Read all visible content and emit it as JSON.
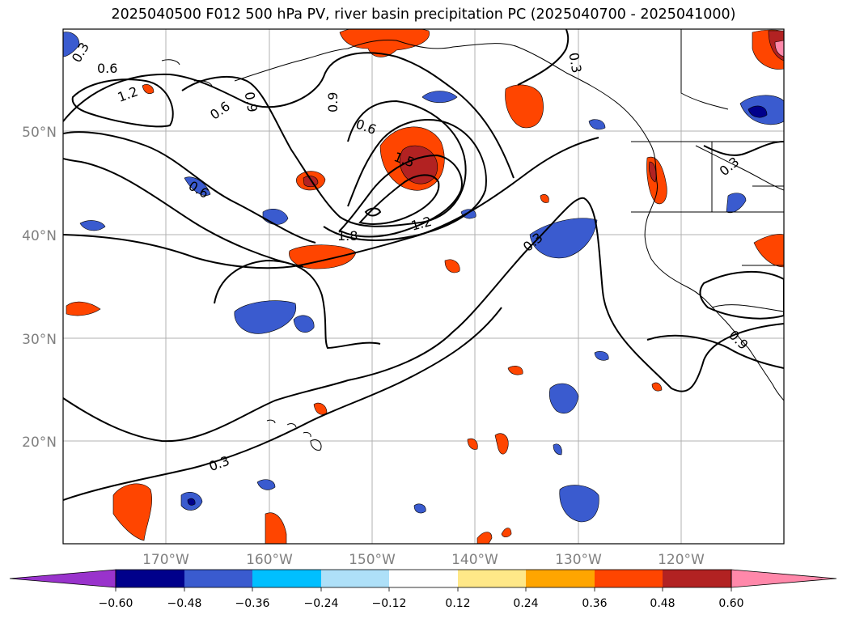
{
  "title": "2025040500 F012 500 hPa PV, river basin precipitation PC (2025040700 - 2025041000)",
  "latitude_labels": [
    "50°N",
    "40°N",
    "30°N",
    "20°N"
  ],
  "longitude_labels": [
    "170°W",
    "160°W",
    "150°W",
    "140°W",
    "130°W",
    "120°W"
  ],
  "contour_labels": [
    "0.3",
    "0.6",
    "1.2",
    "0.6",
    "0.9",
    "0.9",
    "0.6",
    "1.5",
    "1.8",
    "1.2",
    "0.6",
    "0.3",
    "0.3",
    "0.3",
    "0.3",
    "0.9"
  ],
  "colorbar": {
    "tick_labels": [
      "−0.60",
      "−0.48",
      "−0.36",
      "−0.24",
      "−0.12",
      "0.12",
      "0.24",
      "0.36",
      "0.48",
      "0.60"
    ],
    "colors": [
      "#9933cc",
      "#00008b",
      "#3a5bcf",
      "#00bfff",
      "#aee0f8",
      "#ffffff",
      "#ffe888",
      "#ffa500",
      "#ff4500",
      "#b22222",
      "#ff88aa"
    ]
  },
  "colors": {
    "neg_dark": "#00008b",
    "neg_mid": "#3a5bcf",
    "neg_light": "#00bfff",
    "pos_light": "#ffe888",
    "pos_mid": "#ffa500",
    "pos_strong": "#ff4500",
    "pos_dark": "#b22222",
    "pos_max": "#ff88aa"
  }
}
